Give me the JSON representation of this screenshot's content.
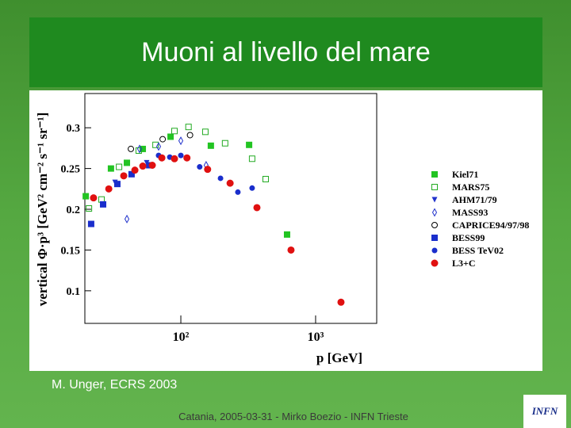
{
  "slide": {
    "title": "Muoni al livello del mare",
    "author": "M. Unger, ECRS 2003",
    "footer": "Catania, 2005-03-31 - Mirko Boezio - INFN Trieste",
    "logo": "INFN"
  },
  "chart_data": {
    "type": "scatter",
    "x_label": "p [GeV]",
    "y_label": "vertical Φ·p³ [GeV² cm⁻² s⁻¹ sr⁻¹]",
    "log_x": true,
    "xlim": [
      19.4,
      2840
    ],
    "ylim": [
      0.06,
      0.342
    ],
    "xticks": [
      {
        "value": 100,
        "label": "10²"
      },
      {
        "value": 1000,
        "label": "10³"
      }
    ],
    "yticks": [
      0.1,
      0.15,
      0.2,
      0.25,
      0.3
    ],
    "series": [
      {
        "name": "Kiel71",
        "color": "#22c422",
        "marker": "square",
        "x": [
          19.7,
          30.3,
          39.8,
          52.2,
          83.9,
          167,
          321,
          614
        ],
        "values": [
          0.216,
          0.25,
          0.257,
          0.274,
          0.289,
          0.278,
          0.279,
          0.169
        ]
      },
      {
        "name": "MARS75",
        "color": "#22aa22",
        "marker": "open-square",
        "x": [
          20.8,
          25.8,
          34.8,
          48.7,
          64.9,
          89.7,
          114,
          152,
          213,
          338,
          426
        ],
        "values": [
          0.201,
          0.212,
          0.252,
          0.272,
          0.279,
          0.296,
          0.301,
          0.295,
          0.281,
          0.262,
          0.237
        ]
      },
      {
        "name": "AHM71/79",
        "color": "#2233cc",
        "marker": "triangle",
        "x": [
          32.5,
          55.8
        ],
        "values": [
          0.233,
          0.257
        ]
      },
      {
        "name": "MASS93",
        "color": "#2233cc",
        "marker": "diamond",
        "x": [
          39.8,
          49.4,
          68.4,
          100,
          154
        ],
        "values": [
          0.188,
          0.274,
          0.277,
          0.284,
          0.254
        ]
      },
      {
        "name": "CAPRICE94/97/98",
        "color": "#000000",
        "marker": "open-circle",
        "x": [
          42.6,
          73.3,
          117
        ],
        "values": [
          0.274,
          0.286,
          0.291
        ]
      },
      {
        "name": "BESS99",
        "color": "#1a2ecc",
        "marker": "square",
        "x": [
          21.6,
          26.5,
          33.8,
          43.1,
          58.2
        ],
        "values": [
          0.182,
          0.206,
          0.231,
          0.243,
          0.254
        ]
      },
      {
        "name": "BESS TeV02",
        "color": "#1a2ecc",
        "marker": "circle",
        "x": [
          68.4,
          82.8,
          100,
          138,
          197,
          265,
          338
        ],
        "values": [
          0.266,
          0.264,
          0.266,
          0.252,
          0.238,
          0.221,
          0.226
        ]
      },
      {
        "name": "L3+C",
        "color": "#e01010",
        "marker": "circle",
        "x": [
          22.5,
          29.2,
          37.7,
          45.6,
          52.2,
          61.4,
          72.3,
          89.7,
          111,
          158,
          232,
          367,
          657,
          1543
        ],
        "values": [
          0.214,
          0.225,
          0.241,
          0.248,
          0.253,
          0.254,
          0.263,
          0.262,
          0.263,
          0.249,
          0.232,
          0.202,
          0.15,
          0.086
        ]
      }
    ]
  }
}
